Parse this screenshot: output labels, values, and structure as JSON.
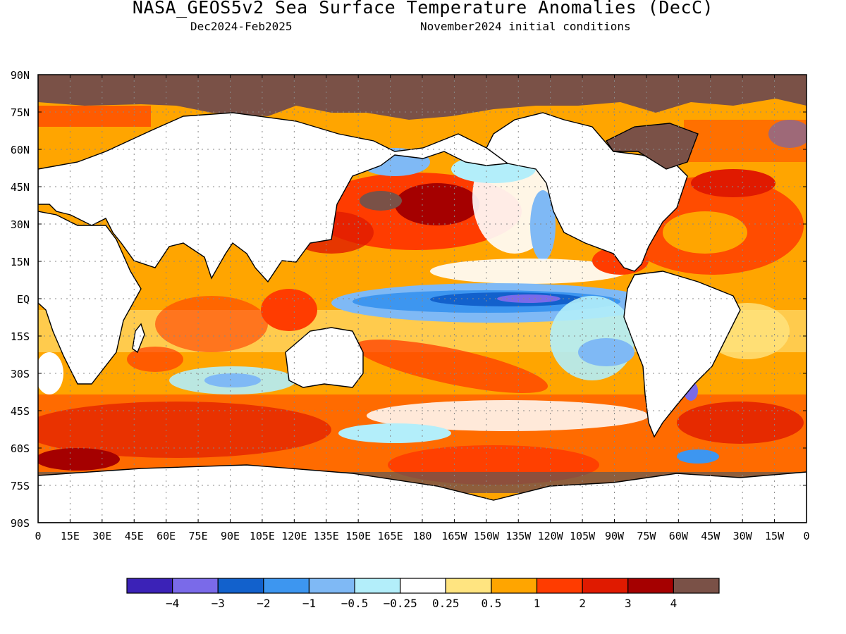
{
  "title": "NASA_GEOS5v2 Sea Surface Temperature Anomalies (DecC)",
  "period": "Dec2024-Feb2025",
  "init": "November2024 initial conditions",
  "lat_labels": [
    "90N",
    "75N",
    "60N",
    "45N",
    "30N",
    "15N",
    "EQ",
    "15S",
    "30S",
    "45S",
    "60S",
    "75S",
    "90S"
  ],
  "lon_labels": [
    "0",
    "15E",
    "30E",
    "45E",
    "60E",
    "75E",
    "90E",
    "105E",
    "120E",
    "135E",
    "150E",
    "165E",
    "180",
    "165W",
    "150W",
    "135W",
    "120W",
    "105W",
    "90W",
    "75W",
    "60W",
    "45W",
    "30W",
    "15W",
    "0"
  ],
  "colorbar": {
    "colors": [
      "#3b22b7",
      "#7a6ae9",
      "#1261cc",
      "#3d96f0",
      "#7fb9f5",
      "#b3eefa",
      "#ffffff",
      "#ffe480",
      "#ffa500",
      "#ff3c00",
      "#e01a00",
      "#a50000",
      "#7a5147"
    ],
    "labels": [
      "-4",
      "-3",
      "-2",
      "-1",
      "-0.5",
      "-0.25",
      "0.25",
      "0.5",
      "1",
      "2",
      "3",
      "4"
    ]
  },
  "land_color": "#ffffff",
  "ice_color": "#7a5147"
}
